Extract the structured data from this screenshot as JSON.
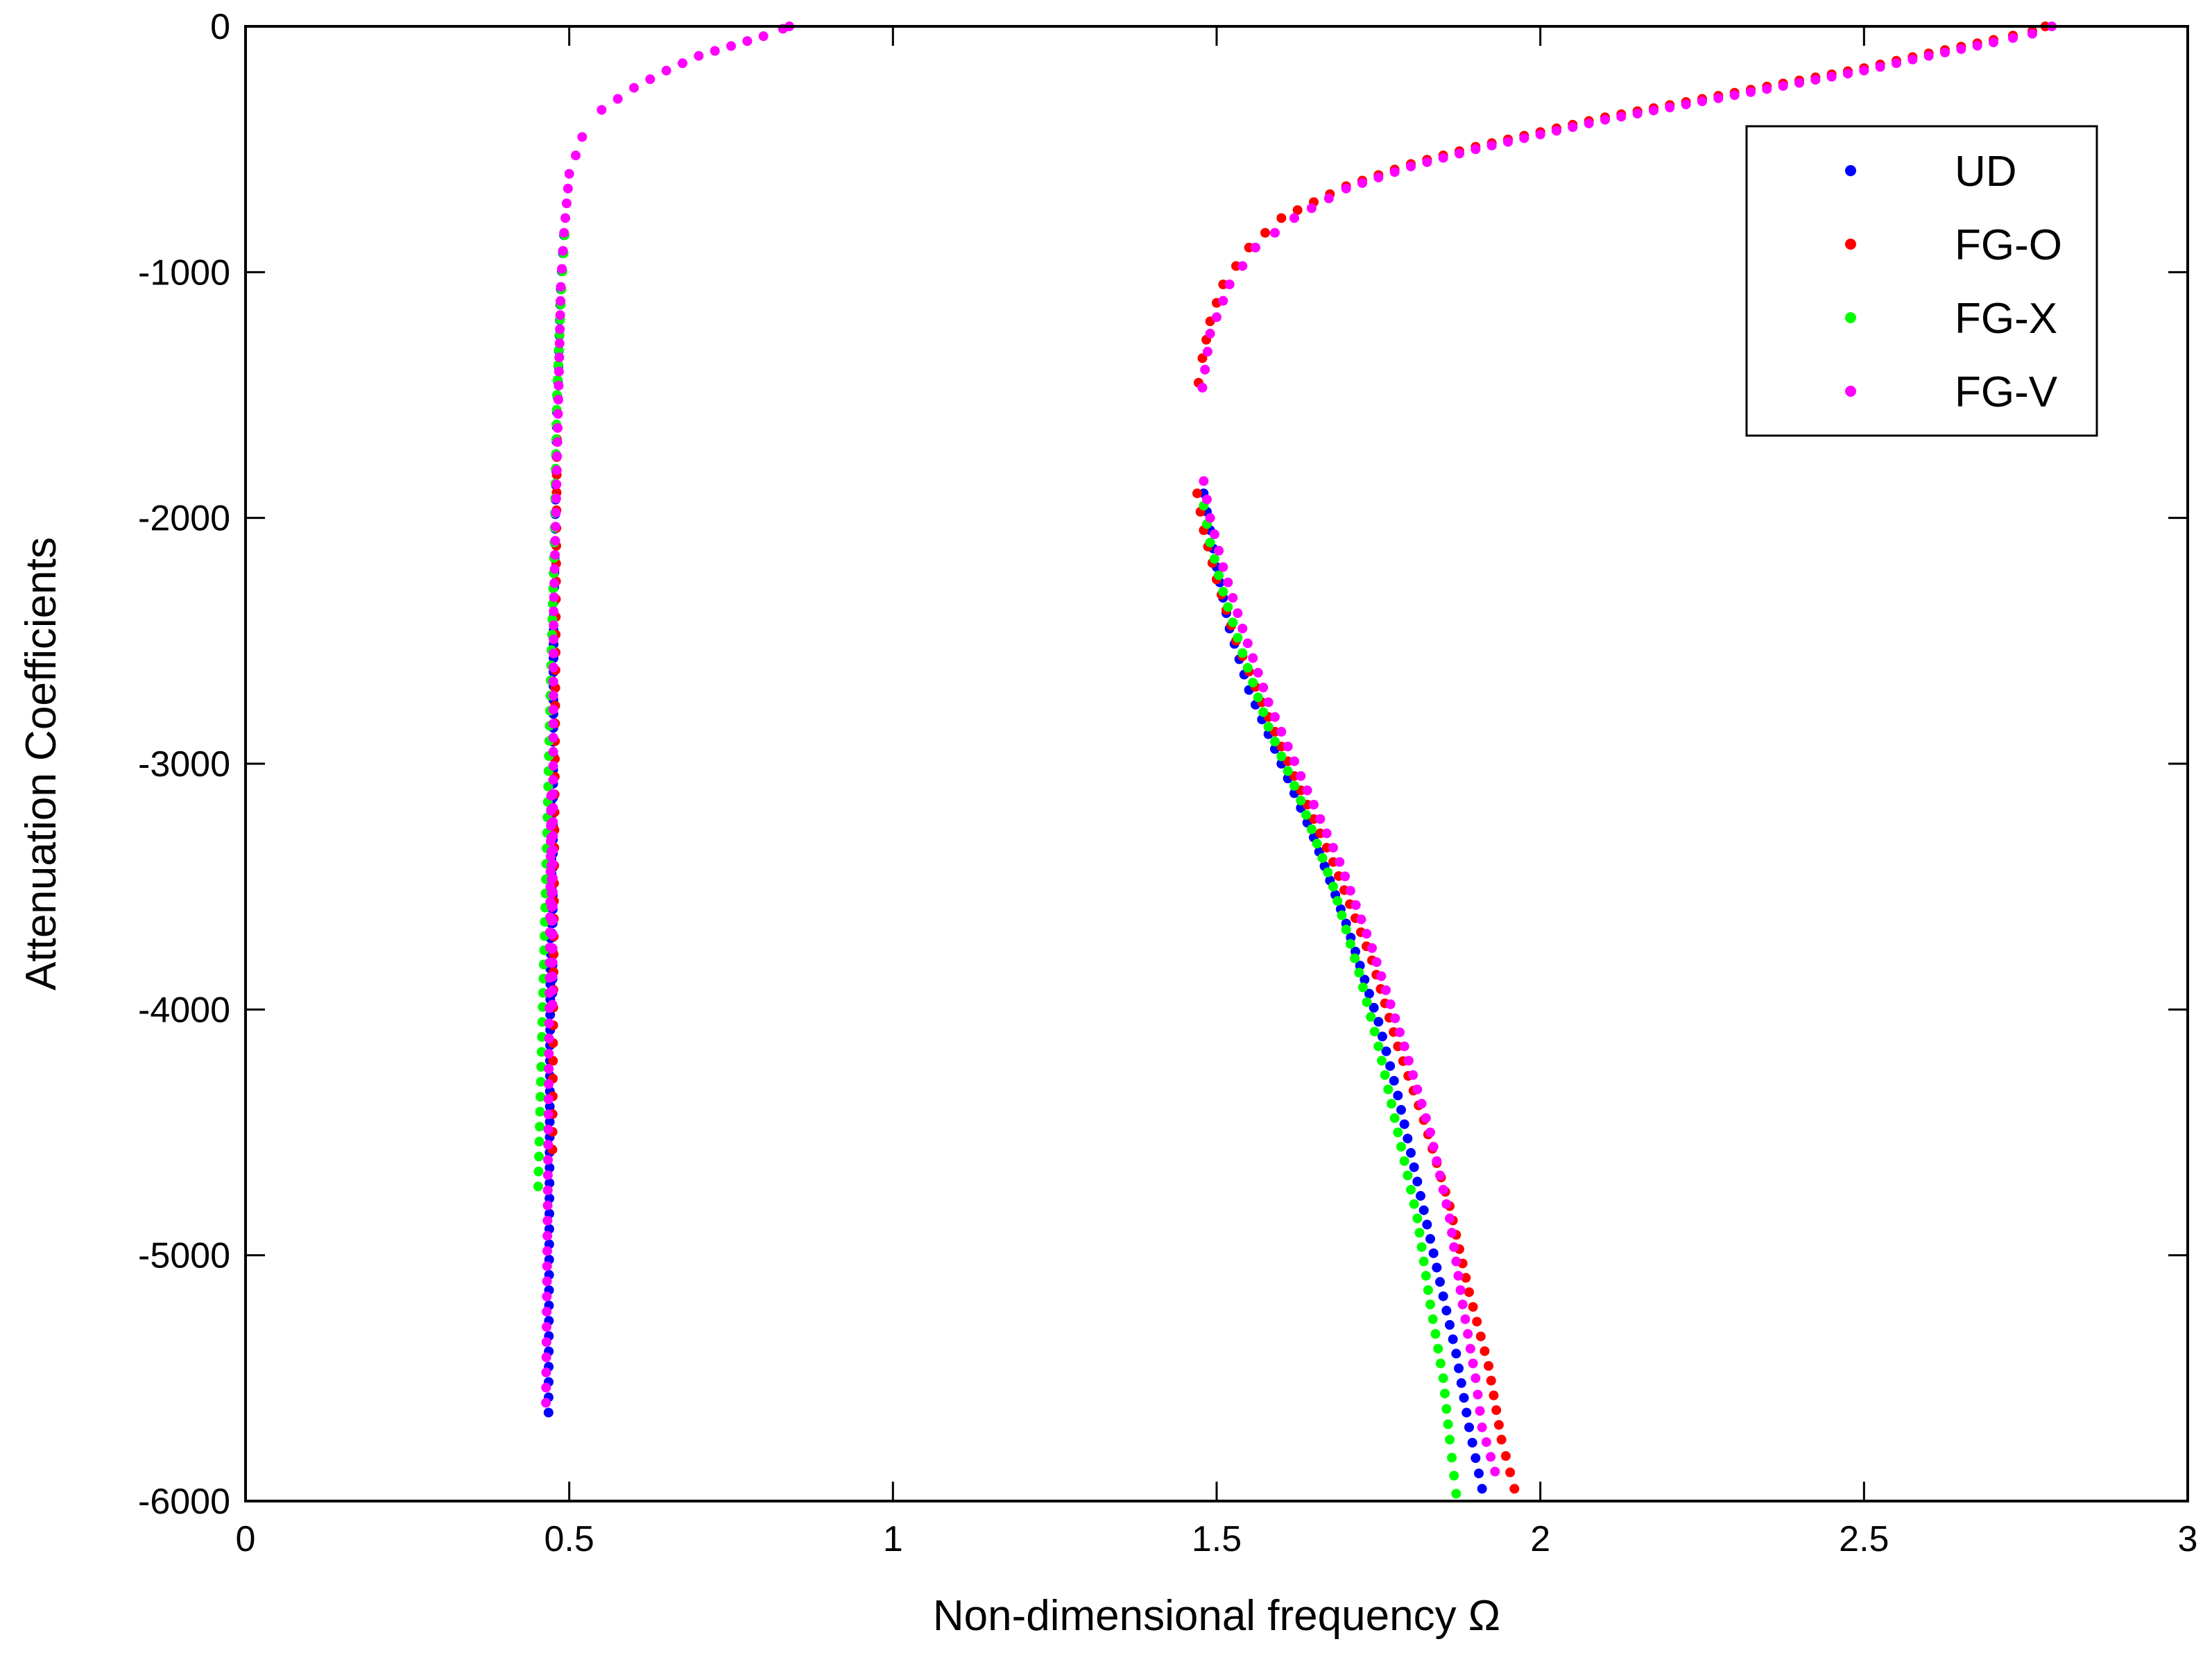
{
  "chart_data": {
    "type": "scatter",
    "xlabel": "Non-dimensional frequency Ω",
    "ylabel": "Attenuation Coefficients",
    "xlim": [
      0,
      3
    ],
    "ylim": [
      -6000,
      0
    ],
    "xticks": [
      0,
      0.5,
      1,
      1.5,
      2,
      2.5,
      3
    ],
    "yticks": [
      0,
      -1000,
      -2000,
      -3000,
      -4000,
      -5000,
      -6000
    ],
    "xtick_labels": [
      "0",
      "0.5",
      "1",
      "1.5",
      "2",
      "2.5",
      "3"
    ],
    "ytick_labels": [
      "0",
      "-1000",
      "-2000",
      "-3000",
      "-4000",
      "-5000",
      "-6000"
    ],
    "grid": false,
    "legend_position": "top-right",
    "series": [
      {
        "name": "UD",
        "color": "#0000ff",
        "curves": [
          [
            [
              0.468,
              -5640
            ],
            [
              0.472,
              -3150
            ],
            [
              0.474,
              -3990
            ],
            [
              0.476,
              -2400
            ],
            [
              0.481,
              -1570
            ],
            [
              0.487,
              -1070
            ],
            [
              0.492,
              -850
            ]
          ],
          [
            [
              1.48,
              -1900
            ],
            [
              1.49,
              -2050
            ],
            [
              1.5,
              -2200
            ],
            [
              1.52,
              -2450
            ],
            [
              1.55,
              -2700
            ],
            [
              1.6,
              -3000
            ],
            [
              1.65,
              -3300
            ],
            [
              1.7,
              -3650
            ],
            [
              1.75,
              -4050
            ],
            [
              1.78,
              -4350
            ],
            [
              1.81,
              -4700
            ],
            [
              1.84,
              -5050
            ],
            [
              1.87,
              -5400
            ],
            [
              1.89,
              -5700
            ],
            [
              1.91,
              -5950
            ]
          ]
        ]
      },
      {
        "name": "FG-O",
        "color": "#ff0000",
        "curves": [
          [
            [
              0.474,
              -4570
            ],
            [
              0.481,
              -1680
            ]
          ],
          [
            [
              1.472,
              -1450
            ],
            [
              1.478,
              -1350
            ],
            [
              1.49,
              -1200
            ],
            [
              1.51,
              -1050
            ],
            [
              1.55,
              -900
            ],
            [
              1.6,
              -780
            ],
            [
              1.7,
              -650
            ],
            [
              1.8,
              -560
            ],
            [
              1.9,
              -490
            ],
            [
              2.0,
              -430
            ],
            [
              2.1,
              -370
            ],
            [
              2.2,
              -320
            ],
            [
              2.3,
              -270
            ],
            [
              2.4,
              -220
            ],
            [
              2.5,
              -170
            ],
            [
              2.6,
              -110
            ],
            [
              2.7,
              -55
            ],
            [
              2.76,
              -20
            ],
            [
              2.78,
              0
            ]
          ],
          [
            [
              1.47,
              -1900
            ],
            [
              1.48,
              -2050
            ],
            [
              1.5,
              -2250
            ],
            [
              1.53,
              -2500
            ],
            [
              1.57,
              -2750
            ],
            [
              1.62,
              -3050
            ],
            [
              1.68,
              -3400
            ],
            [
              1.74,
              -3800
            ],
            [
              1.78,
              -4150
            ],
            [
              1.82,
              -4450
            ],
            [
              1.86,
              -4800
            ],
            [
              1.89,
              -5150
            ],
            [
              1.92,
              -5450
            ],
            [
              1.94,
              -5750
            ],
            [
              1.96,
              -5950
            ]
          ]
        ]
      },
      {
        "name": "FG-X",
        "color": "#00ff00",
        "curves": [
          [
            [
              0.452,
              -4720
            ],
            [
              0.459,
              -3990
            ],
            [
              0.464,
              -3470
            ],
            [
              0.468,
              -3030
            ],
            [
              0.472,
              -2600
            ],
            [
              0.477,
              -2100
            ],
            [
              0.481,
              -1500
            ],
            [
              0.488,
              -1070
            ],
            [
              0.493,
              -850
            ]
          ],
          [
            [
              1.48,
              -1950
            ],
            [
              1.49,
              -2100
            ],
            [
              1.51,
              -2300
            ],
            [
              1.54,
              -2550
            ],
            [
              1.58,
              -2850
            ],
            [
              1.63,
              -3150
            ],
            [
              1.68,
              -3500
            ],
            [
              1.72,
              -3850
            ],
            [
              1.75,
              -4150
            ],
            [
              1.78,
              -4500
            ],
            [
              1.81,
              -4850
            ],
            [
              1.83,
              -5200
            ],
            [
              1.85,
              -5500
            ],
            [
              1.86,
              -5750
            ],
            [
              1.87,
              -5970
            ]
          ]
        ]
      },
      {
        "name": "FG-V",
        "color": "#ff00ff",
        "curves": [
          [
            [
              0.464,
              -5600
            ],
            [
              0.472,
              -3130
            ],
            [
              0.474,
              -3980
            ],
            [
              0.476,
              -2380
            ],
            [
              0.487,
              -1060
            ],
            [
              0.492,
              -840
            ],
            [
              0.5,
              -600
            ],
            [
              0.52,
              -450
            ],
            [
              0.55,
              -340
            ],
            [
              0.6,
              -250
            ],
            [
              0.65,
              -180
            ],
            [
              0.7,
              -120
            ],
            [
              0.75,
              -80
            ],
            [
              0.8,
              -40
            ],
            [
              0.83,
              -10
            ],
            [
              0.84,
              0
            ]
          ],
          [
            [
              1.478,
              -1470
            ],
            [
              1.49,
              -1250
            ],
            [
              1.52,
              -1050
            ],
            [
              1.56,
              -900
            ],
            [
              1.62,
              -780
            ],
            [
              1.7,
              -660
            ],
            [
              1.8,
              -570
            ],
            [
              1.9,
              -500
            ],
            [
              2.0,
              -440
            ],
            [
              2.1,
              -380
            ],
            [
              2.2,
              -330
            ],
            [
              2.3,
              -280
            ],
            [
              2.4,
              -230
            ],
            [
              2.5,
              -180
            ],
            [
              2.6,
              -120
            ],
            [
              2.7,
              -65
            ],
            [
              2.76,
              -30
            ],
            [
              2.79,
              0
            ]
          ],
          [
            [
              1.48,
              -1850
            ],
            [
              1.49,
              -2000
            ],
            [
              1.51,
              -2200
            ],
            [
              1.54,
              -2450
            ],
            [
              1.58,
              -2750
            ],
            [
              1.63,
              -3050
            ],
            [
              1.69,
              -3400
            ],
            [
              1.74,
              -3750
            ],
            [
              1.79,
              -4150
            ],
            [
              1.83,
              -4500
            ],
            [
              1.86,
              -4850
            ],
            [
              1.88,
              -5200
            ],
            [
              1.9,
              -5500
            ],
            [
              1.91,
              -5700
            ],
            [
              1.93,
              -5880
            ]
          ]
        ]
      }
    ]
  }
}
